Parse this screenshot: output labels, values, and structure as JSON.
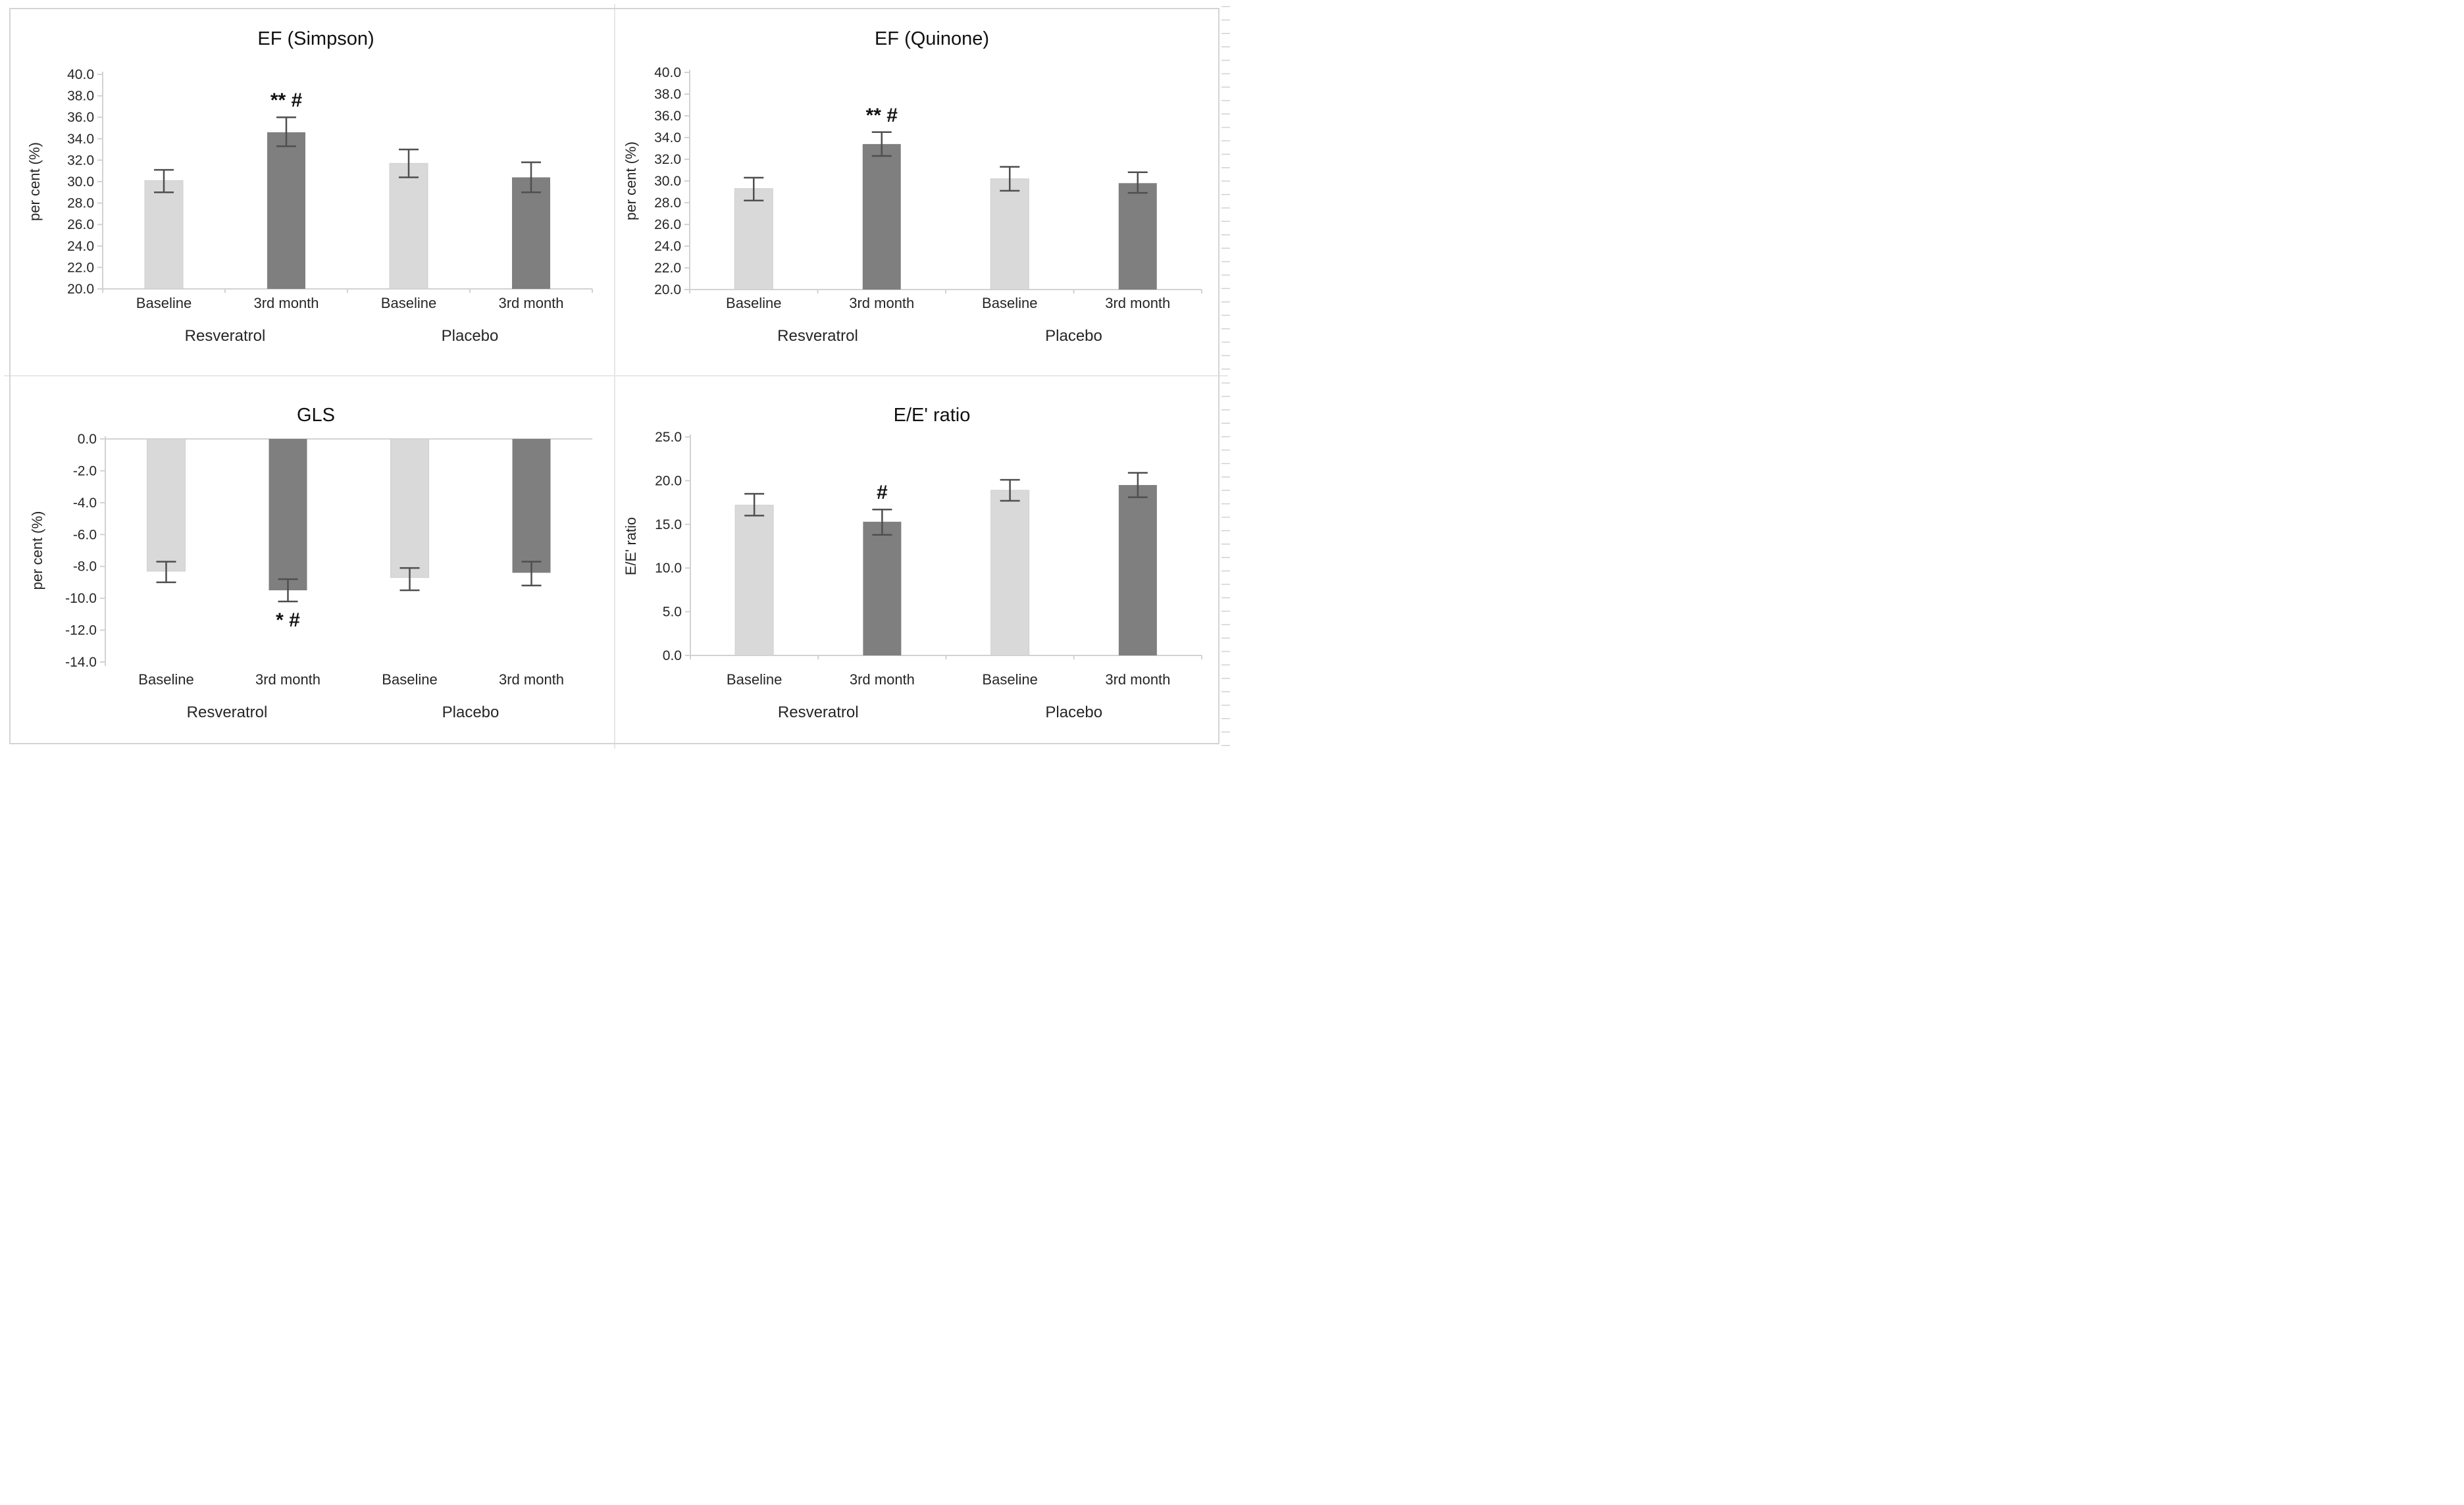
{
  "palette": {
    "bar_light": "#d9d9d9",
    "bar_dark": "#7f7f7f",
    "bar_light_edge": "#cfcfcf",
    "axis_line": "#d2d2d2",
    "error_bar": "#4f4f4f",
    "tick_text": "#262626",
    "title_text": "#111111",
    "annotation_text": "#111111",
    "divider": "#e7e7e7",
    "border": "#d4d4d4",
    "background": "#ffffff"
  },
  "chart_data": [
    {
      "type": "bar",
      "title": "EF (Simpson)",
      "ylabel": "per cent (%)",
      "ylim": [
        20.0,
        40.0
      ],
      "ytick_step": 2.0,
      "ytick_labels": [
        "40.0",
        "38.0",
        "36.0",
        "34.0",
        "32.0",
        "30.0",
        "28.0",
        "26.0",
        "24.0",
        "22.0",
        "20.0"
      ],
      "group_labels": [
        "Resveratrol",
        "Placebo"
      ],
      "grid": "off",
      "legend": "none",
      "bars": [
        {
          "group": "Resveratrol",
          "label": "Baseline",
          "value": 30.1,
          "err_low": 29.0,
          "err_high": 31.1,
          "fill": "light"
        },
        {
          "group": "Resveratrol",
          "label": "3rd month",
          "value": 34.6,
          "err_low": 33.3,
          "err_high": 36.0,
          "fill": "dark",
          "annotation": "** #",
          "annotation_side": "above"
        },
        {
          "group": "Placebo",
          "label": "Baseline",
          "value": 31.7,
          "err_low": 30.4,
          "err_high": 33.0,
          "fill": "light"
        },
        {
          "group": "Placebo",
          "label": "3rd month",
          "value": 30.4,
          "err_low": 29.0,
          "err_high": 31.8,
          "fill": "dark"
        }
      ]
    },
    {
      "type": "bar",
      "title": "EF (Quinone)",
      "ylabel": "per cent (%)",
      "ylim": [
        20.0,
        40.0
      ],
      "ytick_step": 2.0,
      "ytick_labels": [
        "40.0",
        "38.0",
        "36.0",
        "34.0",
        "32.0",
        "30.0",
        "28.0",
        "26.0",
        "24.0",
        "22.0",
        "20.0"
      ],
      "group_labels": [
        "Resveratrol",
        "Placebo"
      ],
      "grid": "off",
      "legend": "none",
      "bars": [
        {
          "group": "Resveratrol",
          "label": "Baseline",
          "value": 29.3,
          "err_low": 28.2,
          "err_high": 30.3,
          "fill": "light"
        },
        {
          "group": "Resveratrol",
          "label": "3rd month",
          "value": 33.4,
          "err_low": 32.3,
          "err_high": 34.5,
          "fill": "dark",
          "annotation": "** #",
          "annotation_side": "above"
        },
        {
          "group": "Placebo",
          "label": "Baseline",
          "value": 30.2,
          "err_low": 29.1,
          "err_high": 31.3,
          "fill": "light"
        },
        {
          "group": "Placebo",
          "label": "3rd month",
          "value": 29.8,
          "err_low": 28.9,
          "err_high": 30.8,
          "fill": "dark"
        }
      ]
    },
    {
      "type": "bar",
      "title": "GLS",
      "ylabel": "per cent (%)",
      "ylim": [
        -14.0,
        0.0
      ],
      "ytick_step": 2.0,
      "ytick_labels": [
        "0.0",
        "-2.0",
        "-4.0",
        "-6.0",
        "-8.0",
        "-10.0",
        "-12.0",
        "-14.0"
      ],
      "group_labels": [
        "Resveratrol",
        "Placebo"
      ],
      "grid": "off",
      "legend": "none",
      "bars": [
        {
          "group": "Resveratrol",
          "label": "Baseline",
          "value": -8.3,
          "err_low": -9.0,
          "err_high": -7.7,
          "fill": "light"
        },
        {
          "group": "Resveratrol",
          "label": "3rd month",
          "value": -9.5,
          "err_low": -10.2,
          "err_high": -8.8,
          "fill": "dark",
          "annotation": "* #",
          "annotation_side": "below"
        },
        {
          "group": "Placebo",
          "label": "Baseline",
          "value": -8.7,
          "err_low": -9.5,
          "err_high": -8.1,
          "fill": "light"
        },
        {
          "group": "Placebo",
          "label": "3rd month",
          "value": -8.4,
          "err_low": -9.2,
          "err_high": -7.7,
          "fill": "dark"
        }
      ]
    },
    {
      "type": "bar",
      "title": "E/E' ratio",
      "ylabel": "E/E' ratio",
      "ylim": [
        0.0,
        25.0
      ],
      "ytick_step": 5.0,
      "ytick_labels": [
        "25.0",
        "20.0",
        "15.0",
        "10.0",
        "5.0",
        "0.0"
      ],
      "group_labels": [
        "Resveratrol",
        "Placebo"
      ],
      "grid": "off",
      "legend": "none",
      "bars": [
        {
          "group": "Resveratrol",
          "label": "Baseline",
          "value": 17.2,
          "err_low": 16.0,
          "err_high": 18.5,
          "fill": "light"
        },
        {
          "group": "Resveratrol",
          "label": "3rd month",
          "value": 15.3,
          "err_low": 13.8,
          "err_high": 16.7,
          "fill": "dark",
          "annotation": "#",
          "annotation_side": "above"
        },
        {
          "group": "Placebo",
          "label": "Baseline",
          "value": 18.9,
          "err_low": 17.7,
          "err_high": 20.1,
          "fill": "light"
        },
        {
          "group": "Placebo",
          "label": "3rd month",
          "value": 19.5,
          "err_low": 18.1,
          "err_high": 20.9,
          "fill": "dark"
        }
      ]
    }
  ]
}
